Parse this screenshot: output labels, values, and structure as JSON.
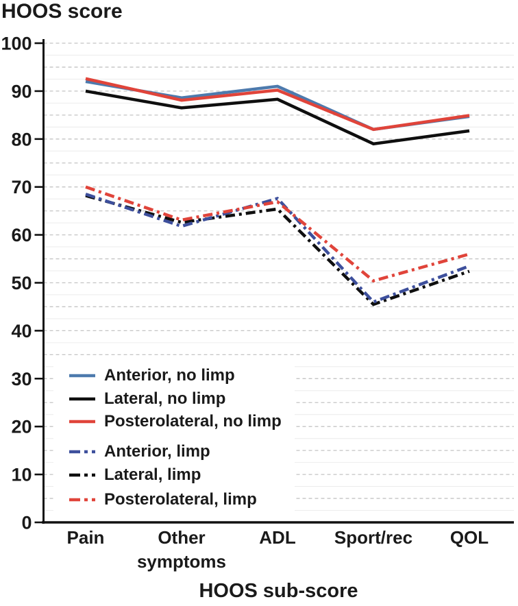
{
  "chart_data": {
    "type": "line",
    "title": "HOOS score",
    "ylabel": "HOOS score",
    "xlabel": "HOOS sub-score",
    "categories": [
      "Pain",
      "Other symptoms",
      "ADL",
      "Sport/rec",
      "QOL"
    ],
    "yticks": [
      0,
      10,
      20,
      30,
      40,
      50,
      60,
      70,
      80,
      90,
      100
    ],
    "ylim": [
      0,
      100
    ],
    "grid": "horizontal, dashed every 5 units with faint minor lines every 2.5, no vertical gridlines",
    "legend_position": "inside plot, lower left, white background",
    "colors": {
      "solid_blue": "#4d7aad",
      "solid_black": "#0f0f0f",
      "solid_red": "#e0443a",
      "dash_blue": "#3d4f9c",
      "dash_black": "#0f0f0f",
      "dash_red": "#e0443a",
      "grid_major": "#c4c4c4",
      "grid_minor": "#ededed"
    },
    "series": [
      {
        "name": "Anterior, no limp",
        "color": "#4d7aad",
        "style": "solid",
        "values": [
          92.0,
          88.6,
          91.0,
          82.0,
          84.7
        ]
      },
      {
        "name": "Lateral, no limp",
        "color": "#0f0f0f",
        "style": "solid",
        "values": [
          90.0,
          86.5,
          88.3,
          79.0,
          81.7
        ]
      },
      {
        "name": "Posterolateral, no limp",
        "color": "#e0443a",
        "style": "solid",
        "values": [
          92.6,
          88.1,
          90.2,
          82.0,
          84.9
        ]
      },
      {
        "name": "Anterior, limp",
        "color": "#3d4f9c",
        "style": "dashdot",
        "values": [
          68.5,
          61.8,
          67.6,
          46.0,
          53.5
        ]
      },
      {
        "name": "Lateral, limp",
        "color": "#0f0f0f",
        "style": "dashdot",
        "values": [
          68.2,
          62.6,
          65.4,
          45.5,
          52.4
        ]
      },
      {
        "name": "Posterolateral, limp",
        "color": "#e0443a",
        "style": "dashdot",
        "values": [
          70.0,
          63.1,
          66.9,
          50.4,
          56.0
        ]
      }
    ]
  }
}
